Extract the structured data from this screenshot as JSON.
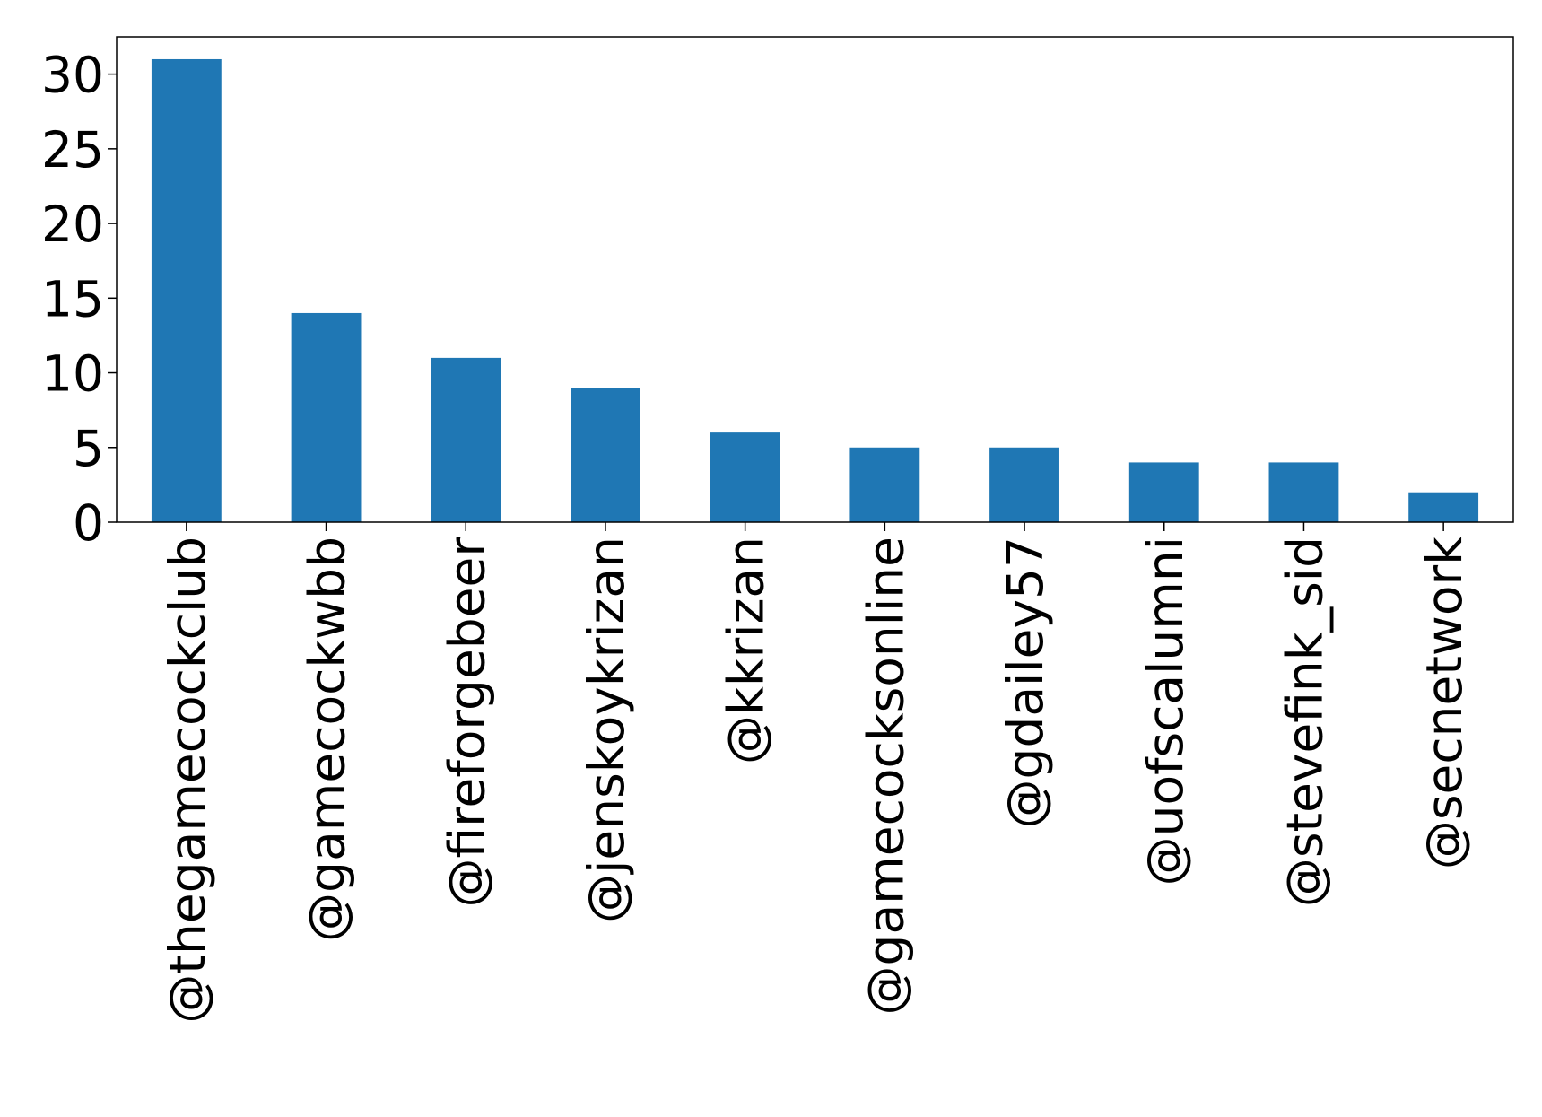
{
  "chart_data": {
    "type": "bar",
    "categories": [
      "@thegamecockclub",
      "@gamecockwbb",
      "@fireforgebeer",
      "@jenskoykrizan",
      "@kkrizan",
      "@gamecocksonline",
      "@gdailey57",
      "@uofscalumni",
      "@stevefink_sid",
      "@secnetwork"
    ],
    "values": [
      31,
      14,
      11,
      9,
      6,
      5,
      5,
      4,
      4,
      2
    ],
    "color": "#1f77b4",
    "ylim": [
      0,
      32.5
    ],
    "yticks": [
      0,
      5,
      10,
      15,
      20,
      25,
      30
    ],
    "grid": false
  }
}
